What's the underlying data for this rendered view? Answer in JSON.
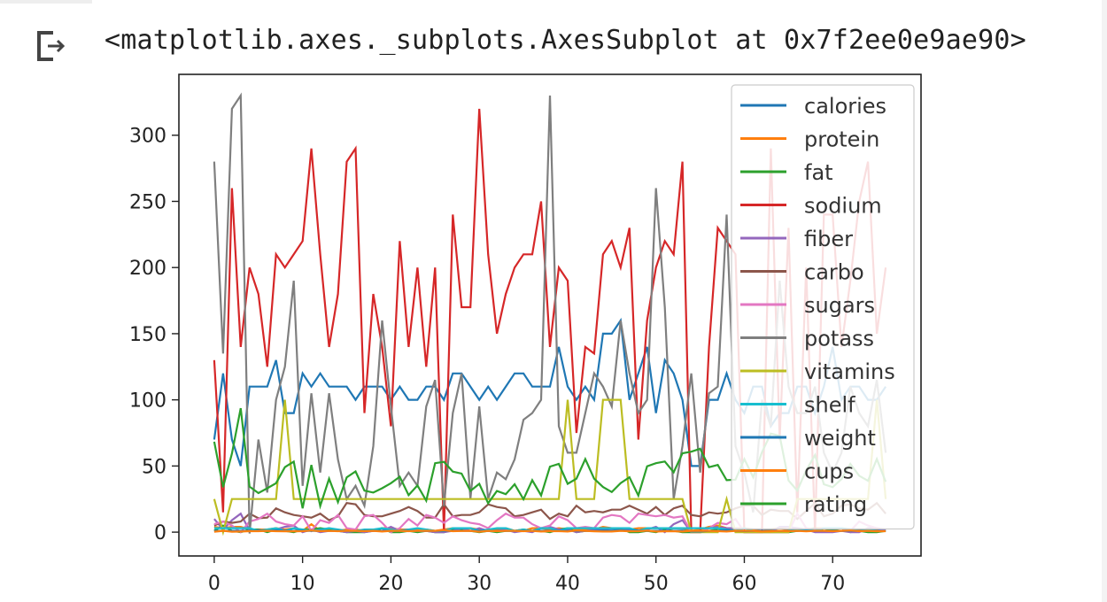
{
  "output": {
    "icon": "output-redirect-icon",
    "text": "<matplotlib.axes._subplots.AxesSubplot at 0x7f2ee0e9ae90>"
  },
  "chart_data": {
    "type": "line",
    "title": "",
    "xlabel": "",
    "ylabel": "",
    "xlim": [
      -4,
      80
    ],
    "ylim": [
      -18,
      346
    ],
    "xticks": [
      0,
      10,
      20,
      30,
      40,
      50,
      60,
      70
    ],
    "yticks": [
      0,
      50,
      100,
      150,
      200,
      250,
      300
    ],
    "grid": false,
    "legend_position": "top-right",
    "series": [
      {
        "name": "calories",
        "color": "#1f77b4",
        "values": [
          70,
          120,
          70,
          50,
          110,
          110,
          110,
          130,
          90,
          90,
          120,
          110,
          120,
          110,
          110,
          110,
          100,
          110,
          110,
          110,
          100,
          110,
          100,
          100,
          110,
          110,
          100,
          120,
          120,
          110,
          100,
          110,
          100,
          110,
          120,
          120,
          110,
          110,
          110,
          140,
          110,
          100,
          110,
          100,
          150,
          150,
          160,
          100,
          120,
          140,
          90,
          130,
          120,
          100,
          50,
          50,
          100,
          100,
          120,
          100,
          90,
          110,
          110,
          80,
          90,
          90,
          110,
          110,
          90,
          110,
          140,
          100,
          110,
          110,
          100,
          100,
          110
        ]
      },
      {
        "name": "protein",
        "color": "#ff7f0e",
        "values": [
          4,
          3,
          4,
          4,
          2,
          2,
          2,
          3,
          2,
          3,
          1,
          6,
          1,
          3,
          1,
          2,
          2,
          1,
          1,
          3,
          3,
          2,
          2,
          2,
          2,
          1,
          2,
          3,
          3,
          3,
          2,
          1,
          2,
          3,
          1,
          1,
          3,
          3,
          2,
          3,
          2,
          2,
          2,
          2,
          4,
          3,
          3,
          2,
          3,
          3,
          3,
          3,
          3,
          3,
          1,
          2,
          4,
          5,
          3,
          3,
          3,
          2,
          1,
          2,
          3,
          2,
          1,
          2,
          3,
          3,
          3,
          3,
          2,
          2,
          1,
          2,
          2
        ]
      },
      {
        "name": "fat",
        "color": "#2ca02c",
        "values": [
          1,
          5,
          1,
          0,
          2,
          2,
          0,
          2,
          1,
          0,
          2,
          2,
          3,
          2,
          1,
          0,
          0,
          0,
          1,
          3,
          0,
          0,
          1,
          0,
          1,
          0,
          0,
          2,
          2,
          1,
          0,
          1,
          0,
          1,
          1,
          2,
          1,
          1,
          0,
          2,
          3,
          0,
          1,
          1,
          3,
          3,
          3,
          0,
          0,
          1,
          0,
          2,
          1,
          0,
          0,
          0,
          1,
          2,
          3,
          3,
          0,
          0,
          0,
          0,
          0,
          0,
          1,
          2,
          3,
          1,
          2,
          3,
          0,
          1,
          0,
          0,
          1
        ]
      },
      {
        "name": "sodium",
        "color": "#d62728",
        "values": [
          130,
          15,
          260,
          140,
          200,
          180,
          125,
          210,
          200,
          210,
          220,
          290,
          210,
          140,
          180,
          280,
          290,
          90,
          180,
          140,
          80,
          220,
          140,
          200,
          125,
          200,
          0,
          240,
          170,
          170,
          320,
          210,
          150,
          180,
          200,
          210,
          210,
          250,
          140,
          200,
          190,
          75,
          140,
          135,
          210,
          220,
          200,
          230,
          70,
          160,
          200,
          220,
          210,
          280,
          0,
          0,
          140,
          230,
          220,
          210,
          0,
          0,
          0,
          290,
          70,
          230,
          15,
          200,
          0,
          240,
          240,
          140,
          190,
          250,
          280,
          150,
          200
        ]
      },
      {
        "name": "fiber",
        "color": "#9467bd",
        "values": [
          10,
          2,
          9,
          14,
          1,
          1.5,
          1,
          2,
          4,
          5,
          0,
          2,
          0,
          1,
          1,
          0,
          1,
          0,
          1,
          1,
          4,
          1,
          2,
          1,
          1,
          0,
          0,
          1,
          3,
          1,
          3,
          1,
          1,
          2,
          0,
          1,
          0,
          3,
          4,
          2,
          2,
          0,
          1,
          2,
          2,
          3,
          3,
          2,
          1,
          2,
          4,
          0,
          6,
          9,
          0,
          0,
          3,
          4,
          3,
          3,
          1,
          1,
          1,
          0,
          4,
          4,
          3,
          2,
          0,
          0,
          0,
          1,
          0,
          0,
          3,
          3,
          1
        ]
      },
      {
        "name": "carbo",
        "color": "#8c564b",
        "values": [
          5,
          8,
          7,
          8,
          14,
          10.5,
          11,
          18,
          15,
          13,
          12,
          11,
          14,
          9,
          12,
          22,
          21,
          13,
          12,
          12,
          14,
          16,
          19,
          16,
          11,
          11,
          21,
          12,
          13,
          13,
          15,
          21,
          19,
          18,
          12,
          13,
          15,
          17,
          10,
          14,
          12,
          20,
          15,
          16,
          15,
          17,
          17,
          20,
          17,
          14,
          19,
          13,
          18,
          20,
          13,
          12,
          15,
          14,
          15,
          18,
          20,
          20,
          13,
          17,
          16,
          16,
          10,
          16,
          22,
          12,
          14,
          20,
          21,
          18,
          17,
          22,
          14
        ]
      },
      {
        "name": "sugars",
        "color": "#e377c2",
        "values": [
          6,
          8,
          5,
          0,
          8,
          10,
          14,
          8,
          6,
          5,
          12,
          1,
          9,
          7,
          13,
          3,
          2,
          12,
          13,
          7,
          0,
          3,
          10,
          5,
          13,
          11,
          7,
          12,
          9,
          7,
          6,
          3,
          9,
          14,
          11,
          11,
          6,
          3,
          5,
          12,
          9,
          3,
          4,
          3,
          11,
          13,
          12,
          7,
          14,
          13,
          12,
          13,
          11,
          12,
          0,
          0,
          3,
          7,
          6,
          10,
          0,
          0,
          0,
          0,
          0,
          0,
          14,
          3,
          2,
          3,
          3,
          3,
          1,
          8,
          5,
          3,
          2
        ]
      },
      {
        "name": "potass",
        "color": "#7f7f7f",
        "values": [
          280,
          135,
          320,
          330,
          -1,
          70,
          30,
          100,
          125,
          190,
          35,
          105,
          45,
          105,
          55,
          25,
          35,
          20,
          65,
          160,
          95,
          35,
          45,
          35,
          95,
          115,
          20,
          90,
          120,
          25,
          95,
          25,
          45,
          40,
          55,
          85,
          90,
          100,
          330,
          80,
          60,
          60,
          90,
          120,
          110,
          95,
          160,
          120,
          90,
          100,
          260,
          170,
          25,
          65,
          120,
          45,
          105,
          110,
          240,
          65,
          45,
          15,
          100,
          80,
          190,
          110,
          90,
          90,
          110,
          60,
          45,
          60,
          110,
          90,
          80,
          115,
          60
        ]
      },
      {
        "name": "vitamins",
        "color": "#bcbd22",
        "values": [
          25,
          0,
          25,
          25,
          25,
          25,
          25,
          25,
          100,
          25,
          25,
          25,
          25,
          25,
          25,
          25,
          25,
          25,
          25,
          25,
          25,
          25,
          25,
          25,
          25,
          25,
          25,
          25,
          25,
          25,
          25,
          25,
          25,
          25,
          25,
          25,
          25,
          25,
          25,
          25,
          100,
          25,
          25,
          25,
          100,
          100,
          100,
          25,
          25,
          25,
          25,
          25,
          25,
          25,
          0,
          0,
          0,
          0,
          25,
          0,
          0,
          0,
          0,
          0,
          0,
          0,
          25,
          25,
          25,
          25,
          25,
          25,
          25,
          25,
          25,
          100,
          25
        ]
      },
      {
        "name": "shelf",
        "color": "#17becf",
        "values": [
          3,
          3,
          3,
          3,
          3,
          1,
          2,
          3,
          1,
          3,
          2,
          1,
          2,
          3,
          2,
          1,
          1,
          2,
          2,
          3,
          2,
          1,
          2,
          3,
          2,
          1,
          1,
          3,
          3,
          3,
          1,
          2,
          3,
          3,
          1,
          2,
          1,
          3,
          3,
          1,
          3,
          3,
          3,
          3,
          3,
          3,
          3,
          3,
          1,
          3,
          3,
          3,
          3,
          3,
          3,
          3,
          3,
          3,
          2,
          1,
          3,
          1,
          1,
          1,
          1,
          1,
          2,
          2,
          1,
          3,
          3,
          3,
          2,
          1,
          2,
          1,
          1
        ]
      },
      {
        "name": "weight",
        "color": "#1f77b4",
        "values": [
          1,
          1,
          1,
          1,
          1,
          1,
          1,
          1.33,
          1,
          1,
          1,
          1,
          1,
          1,
          1,
          1,
          1,
          1,
          1,
          1,
          1,
          1,
          1,
          1,
          1,
          1,
          1,
          1,
          1,
          1,
          1,
          1,
          1,
          1,
          1,
          1,
          1,
          1,
          1,
          1,
          1,
          1,
          1,
          1,
          1.25,
          1.3,
          1.5,
          1,
          1.25,
          1,
          1,
          1,
          1,
          1.3,
          0.5,
          0.5,
          1,
          1,
          1.5,
          1,
          0.83,
          1,
          1,
          1,
          1,
          1,
          1,
          1,
          1,
          1,
          1,
          1,
          1,
          1,
          1,
          1,
          1
        ]
      },
      {
        "name": "cups",
        "color": "#ff7f0e",
        "values": [
          0.33,
          1,
          0.33,
          0.5,
          0.75,
          0.75,
          1,
          0.75,
          0.67,
          0.67,
          0.75,
          1.25,
          0.75,
          1,
          0.75,
          1,
          1,
          0.75,
          1,
          0.5,
          1,
          1,
          0.75,
          1,
          1,
          1,
          1.5,
          0.75,
          0.88,
          1,
          0.33,
          1,
          0.75,
          1,
          1,
          0.75,
          1,
          0.5,
          0.75,
          0.75,
          0.5,
          1.33,
          1,
          0.67,
          0.5,
          0.5,
          1,
          0.67,
          0.75,
          1.13,
          0.5,
          0.67,
          0.67,
          0.5,
          1,
          1,
          1,
          0.75,
          0.5,
          1,
          1,
          1,
          0.5,
          0.67,
          1,
          0.75,
          1,
          0.67,
          1,
          1,
          0.75,
          1,
          1.33,
          0.75,
          1,
          0.67,
          0.75
        ]
      },
      {
        "name": "rating",
        "color": "#2ca02c",
        "values": [
          68.4,
          34.0,
          59.4,
          93.7,
          34.4,
          29.5,
          33.2,
          37.0,
          49.1,
          53.3,
          18.0,
          50.8,
          19.8,
          40.4,
          22.7,
          41.4,
          45.9,
          31.4,
          29.9,
          33.2,
          37.0,
          41.9,
          28.0,
          35.3,
          23.8,
          52.1,
          53.1,
          45.8,
          44.3,
          31.2,
          36.5,
          21.9,
          31.1,
          28.7,
          36.2,
          24.9,
          39.3,
          27.8,
          49.5,
          51.6,
          36.5,
          40.4,
          55.3,
          40.4,
          34.1,
          30.3,
          37.1,
          41.5,
          27.7,
          49.8,
          52.1,
          53.4,
          45.3,
          59.6,
          60.8,
          63.0,
          49.1,
          50.8,
          39.3,
          39.7,
          55.3,
          41.5,
          60.4,
          74.5,
          72.8,
          39.1,
          31.4,
          46.7,
          58.3,
          36.2,
          34.0,
          40.1,
          51.6,
          42.6,
          38.8,
          55.3,
          38.1
        ]
      }
    ]
  }
}
